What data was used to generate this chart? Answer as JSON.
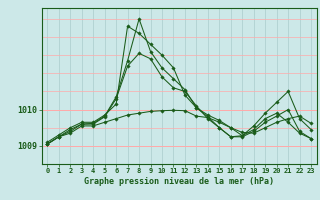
{
  "title": "Graphe pression niveau de la mer (hPa)",
  "bg_color": "#cce8e8",
  "grid_color_v": "#aacccc",
  "grid_color_h": "#ffaaaa",
  "line_color": "#1a5c1a",
  "marker_color": "#1a5c1a",
  "x_labels": [
    "0",
    "1",
    "2",
    "3",
    "4",
    "5",
    "6",
    "7",
    "8",
    "9",
    "10",
    "11",
    "12",
    "13",
    "14",
    "15",
    "16",
    "17",
    "18",
    "19",
    "20",
    "21",
    "22",
    "23"
  ],
  "yticks": [
    1009,
    1010
  ],
  "ylim": [
    1008.5,
    1012.8
  ],
  "xlim": [
    -0.5,
    23.5
  ],
  "series": [
    [
      1009.05,
      1009.25,
      1009.35,
      1009.55,
      1009.55,
      1009.65,
      1009.75,
      1009.85,
      1009.9,
      1009.95,
      1009.97,
      1009.98,
      1009.97,
      1009.82,
      1009.78,
      1009.65,
      1009.5,
      1009.37,
      1009.35,
      1009.5,
      1009.65,
      1009.75,
      1009.82,
      1009.62
    ],
    [
      1009.05,
      1009.25,
      1009.4,
      1009.6,
      1009.6,
      1009.8,
      1010.3,
      1011.2,
      1011.55,
      1011.4,
      1010.9,
      1010.6,
      1010.5,
      1010.1,
      1009.75,
      1009.5,
      1009.25,
      1009.25,
      1009.4,
      1009.65,
      1009.82,
      1010.0,
      1009.4,
      1009.2
    ],
    [
      1009.1,
      1009.3,
      1009.5,
      1009.65,
      1009.65,
      1009.85,
      1010.15,
      1012.3,
      1012.1,
      1011.8,
      1011.5,
      1011.15,
      1010.4,
      1010.05,
      1009.85,
      1009.7,
      1009.5,
      1009.28,
      1009.55,
      1009.9,
      1010.2,
      1010.5,
      1009.75,
      1009.45
    ],
    [
      1009.05,
      1009.25,
      1009.45,
      1009.6,
      1009.62,
      1009.82,
      1010.35,
      1011.35,
      1012.5,
      1011.6,
      1011.15,
      1010.85,
      1010.55,
      1010.05,
      1009.8,
      1009.5,
      1009.25,
      1009.28,
      1009.45,
      1009.75,
      1009.9,
      1009.65,
      1009.35,
      1009.2
    ]
  ]
}
